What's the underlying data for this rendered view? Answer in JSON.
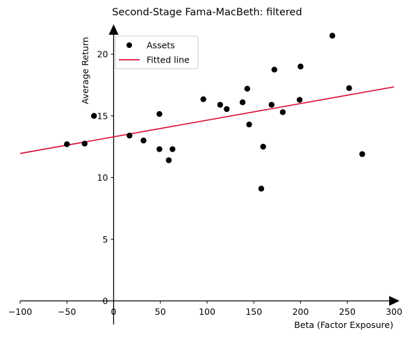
{
  "chart_data": {
    "type": "scatter",
    "title": "Second-Stage Fama-MacBeth: filtered",
    "xlabel": "Beta (Factor Exposure)",
    "ylabel": "Average Return",
    "xlim": [
      -100,
      300
    ],
    "ylim": [
      0,
      22
    ],
    "xticks": [
      -100,
      -50,
      0,
      50,
      100,
      150,
      200,
      250,
      300
    ],
    "yticks": [
      0,
      5,
      10,
      15,
      20
    ],
    "grid": false,
    "legend_position": "top-left",
    "series": [
      {
        "name": "Assets",
        "kind": "scatter",
        "color": "#000000",
        "points": [
          {
            "x": -50,
            "y": 12.7
          },
          {
            "x": -31,
            "y": 12.75
          },
          {
            "x": -21,
            "y": 15.0
          },
          {
            "x": 17,
            "y": 13.4
          },
          {
            "x": 32,
            "y": 13.0
          },
          {
            "x": 49,
            "y": 12.3
          },
          {
            "x": 49,
            "y": 15.15
          },
          {
            "x": 59,
            "y": 11.4
          },
          {
            "x": 63,
            "y": 12.3
          },
          {
            "x": 96,
            "y": 16.35
          },
          {
            "x": 114,
            "y": 15.9
          },
          {
            "x": 121,
            "y": 15.55
          },
          {
            "x": 138,
            "y": 16.1
          },
          {
            "x": 143,
            "y": 17.2
          },
          {
            "x": 145,
            "y": 14.3
          },
          {
            "x": 158,
            "y": 9.1
          },
          {
            "x": 160,
            "y": 12.5
          },
          {
            "x": 169,
            "y": 15.9
          },
          {
            "x": 172,
            "y": 18.75
          },
          {
            "x": 181,
            "y": 15.3
          },
          {
            "x": 199,
            "y": 16.3
          },
          {
            "x": 200,
            "y": 19.0
          },
          {
            "x": 234,
            "y": 21.5
          },
          {
            "x": 252,
            "y": 17.25
          },
          {
            "x": 266,
            "y": 11.9
          }
        ]
      },
      {
        "name": "Fitted line",
        "kind": "line",
        "color": "#dc143c",
        "points": [
          {
            "x": -100,
            "y": 11.95
          },
          {
            "x": 300,
            "y": 17.35
          }
        ]
      }
    ]
  }
}
